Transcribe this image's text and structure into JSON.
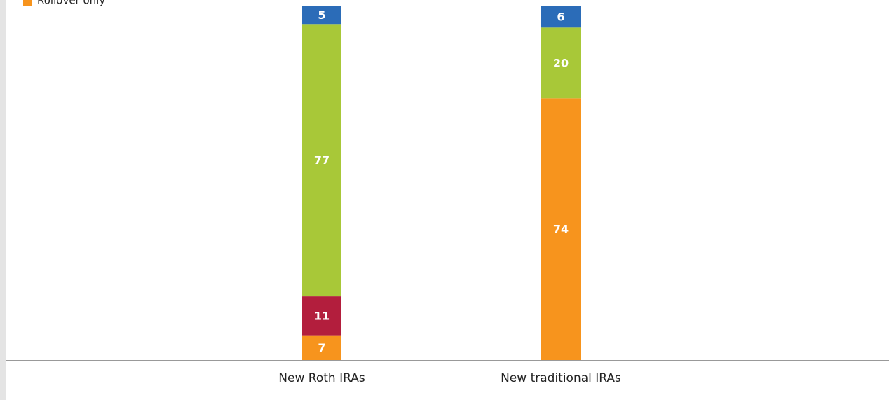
{
  "chart_data": {
    "type": "stacked_bar",
    "categories": [
      "New Roth IRAs",
      "New traditional IRAs"
    ],
    "series": [
      {
        "name": "Rollover only",
        "color": "#f7941d",
        "values": [
          7,
          74
        ]
      },
      {
        "color": "#b31e3d",
        "values": [
          11,
          null
        ]
      },
      {
        "color": "#a8c838",
        "values": [
          77,
          20
        ]
      },
      {
        "color": "#2b6cb8",
        "values": [
          5,
          6
        ]
      }
    ],
    "ylim": [
      0,
      100
    ]
  }
}
